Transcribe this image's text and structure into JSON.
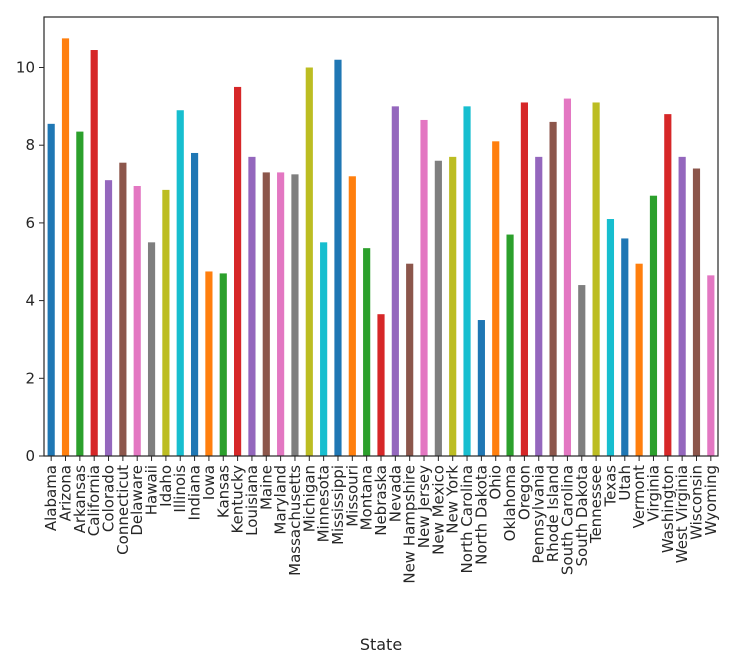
{
  "chart_data": {
    "type": "bar",
    "title": "",
    "xlabel": "State",
    "ylabel": "",
    "ylim": [
      0,
      11.3
    ],
    "yticks": [
      0,
      2,
      4,
      6,
      8,
      10
    ],
    "grid": false,
    "legend": "none",
    "categories": [
      "Alabama",
      "Arizona",
      "Arkansas",
      "California",
      "Colorado",
      "Connecticut",
      "Delaware",
      "Hawaii",
      "Idaho",
      "Illinois",
      "Indiana",
      "Iowa",
      "Kansas",
      "Kentucky",
      "Louisiana",
      "Maine",
      "Maryland",
      "Massachusetts",
      "Michigan",
      "Minnesota",
      "Mississippi",
      "Missouri",
      "Montana",
      "Nebraska",
      "Nevada",
      "New Hampshire",
      "New Jersey",
      "New Mexico",
      "New York",
      "North Carolina",
      "North Dakota",
      "Ohio",
      "Oklahoma",
      "Oregon",
      "Pennsylvania",
      "Rhode Island",
      "South Carolina",
      "South Dakota",
      "Tennessee",
      "Texas",
      "Utah",
      "Vermont",
      "Virginia",
      "Washington",
      "West Virginia",
      "Wisconsin",
      "Wyoming"
    ],
    "values": [
      8.55,
      10.75,
      8.35,
      10.45,
      7.1,
      7.55,
      6.95,
      5.5,
      6.85,
      8.9,
      7.8,
      4.75,
      4.7,
      9.5,
      7.7,
      7.3,
      7.3,
      7.25,
      10.0,
      5.5,
      10.2,
      7.2,
      5.35,
      3.65,
      9.0,
      4.95,
      8.65,
      7.6,
      7.7,
      9.0,
      3.5,
      8.1,
      5.7,
      9.1,
      7.7,
      8.6,
      9.2,
      4.4,
      9.1,
      6.1,
      5.6,
      4.95,
      6.7,
      8.8,
      7.7,
      7.4,
      4.65
    ],
    "colors": [
      "#1f77b4",
      "#ff7f0e",
      "#2ca02c",
      "#d62728",
      "#9467bd",
      "#8c564b",
      "#e377c2",
      "#7f7f7f",
      "#bcbd22",
      "#17becf"
    ]
  }
}
